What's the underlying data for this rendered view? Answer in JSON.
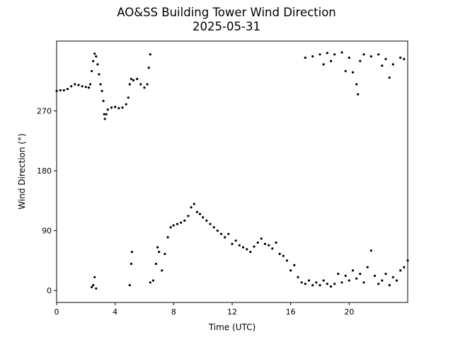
{
  "chart_data": {
    "type": "scatter",
    "title": "AO&SS Building Tower Wind Direction",
    "subtitle": "2025-05-31",
    "xlabel": "Time (UTC)",
    "ylabel": "Wind Direction (°)",
    "xlim": [
      0,
      24
    ],
    "ylim": [
      -18,
      375
    ],
    "x_ticks": [
      0,
      4,
      8,
      12,
      16,
      20
    ],
    "x_tick_labels": [
      "0",
      "4",
      "8",
      "12",
      "16",
      "20"
    ],
    "y_ticks": [
      0,
      90,
      180,
      270
    ],
    "y_tick_labels": [
      "0",
      "90",
      "180",
      "270"
    ],
    "grid": false,
    "marker_color": "#000000",
    "series": [
      {
        "points": [
          [
            0.0,
            300
          ],
          [
            0.25,
            301
          ],
          [
            0.5,
            301
          ],
          [
            0.75,
            303
          ],
          [
            1.0,
            307
          ],
          [
            1.25,
            310
          ],
          [
            1.5,
            309
          ],
          [
            1.75,
            307
          ],
          [
            2.0,
            306
          ],
          [
            2.2,
            305
          ],
          [
            2.3,
            310
          ],
          [
            2.4,
            330
          ],
          [
            2.5,
            345
          ],
          [
            2.6,
            356
          ],
          [
            2.7,
            352
          ],
          [
            2.8,
            340
          ],
          [
            2.9,
            325
          ],
          [
            3.0,
            310
          ],
          [
            3.1,
            300
          ],
          [
            3.2,
            285
          ],
          [
            3.25,
            265
          ],
          [
            3.3,
            258
          ],
          [
            3.4,
            265
          ],
          [
            3.5,
            272
          ],
          [
            3.75,
            275
          ],
          [
            4.0,
            276
          ],
          [
            4.25,
            274
          ],
          [
            4.5,
            275
          ],
          [
            4.75,
            280
          ],
          [
            4.9,
            290
          ],
          [
            5.0,
            310
          ],
          [
            5.1,
            318
          ],
          [
            5.25,
            316
          ],
          [
            5.5,
            318
          ],
          [
            5.75,
            310
          ],
          [
            6.0,
            305
          ],
          [
            6.2,
            310
          ],
          [
            6.3,
            335
          ],
          [
            6.4,
            355
          ],
          [
            2.4,
            5
          ],
          [
            2.5,
            8
          ],
          [
            2.6,
            20
          ],
          [
            2.7,
            3
          ],
          [
            5.0,
            8
          ],
          [
            5.1,
            40
          ],
          [
            5.15,
            58
          ],
          [
            6.4,
            12
          ],
          [
            6.6,
            15
          ],
          [
            6.8,
            40
          ],
          [
            6.9,
            65
          ],
          [
            7.0,
            58
          ],
          [
            7.2,
            30
          ],
          [
            7.4,
            55
          ],
          [
            7.6,
            80
          ],
          [
            7.8,
            95
          ],
          [
            8.0,
            98
          ],
          [
            8.25,
            100
          ],
          [
            8.5,
            102
          ],
          [
            8.75,
            105
          ],
          [
            9.0,
            112
          ],
          [
            9.2,
            125
          ],
          [
            9.4,
            130
          ],
          [
            9.6,
            118
          ],
          [
            9.8,
            115
          ],
          [
            10.0,
            110
          ],
          [
            10.25,
            105
          ],
          [
            10.5,
            100
          ],
          [
            10.75,
            95
          ],
          [
            11.0,
            90
          ],
          [
            11.25,
            85
          ],
          [
            11.5,
            80
          ],
          [
            11.75,
            85
          ],
          [
            12.0,
            70
          ],
          [
            12.25,
            75
          ],
          [
            12.5,
            68
          ],
          [
            12.75,
            65
          ],
          [
            13.0,
            62
          ],
          [
            13.25,
            58
          ],
          [
            13.5,
            66
          ],
          [
            13.75,
            72
          ],
          [
            14.0,
            78
          ],
          [
            14.25,
            70
          ],
          [
            14.5,
            68
          ],
          [
            14.75,
            63
          ],
          [
            15.0,
            72
          ],
          [
            15.25,
            55
          ],
          [
            15.5,
            52
          ],
          [
            15.75,
            45
          ],
          [
            16.0,
            30
          ],
          [
            16.25,
            38
          ],
          [
            16.5,
            20
          ],
          [
            16.75,
            12
          ],
          [
            17.0,
            10
          ],
          [
            17.25,
            15
          ],
          [
            17.5,
            8
          ],
          [
            17.75,
            12
          ],
          [
            18.0,
            8
          ],
          [
            18.25,
            15
          ],
          [
            18.5,
            10
          ],
          [
            18.75,
            6
          ],
          [
            19.0,
            10
          ],
          [
            19.25,
            25
          ],
          [
            19.5,
            12
          ],
          [
            19.75,
            22
          ],
          [
            20.0,
            15
          ],
          [
            20.25,
            30
          ],
          [
            20.5,
            18
          ],
          [
            20.75,
            25
          ],
          [
            21.0,
            12
          ],
          [
            21.25,
            35
          ],
          [
            21.5,
            60
          ],
          [
            21.75,
            22
          ],
          [
            22.0,
            10
          ],
          [
            22.25,
            15
          ],
          [
            22.5,
            25
          ],
          [
            22.75,
            8
          ],
          [
            23.0,
            20
          ],
          [
            23.25,
            15
          ],
          [
            23.5,
            30
          ],
          [
            23.75,
            35
          ],
          [
            24.0,
            45
          ],
          [
            17.0,
            350
          ],
          [
            17.5,
            352
          ],
          [
            18.0,
            355
          ],
          [
            18.25,
            340
          ],
          [
            18.5,
            357
          ],
          [
            18.75,
            345
          ],
          [
            19.0,
            355
          ],
          [
            19.5,
            358
          ],
          [
            19.75,
            330
          ],
          [
            20.0,
            350
          ],
          [
            20.25,
            328
          ],
          [
            20.5,
            310
          ],
          [
            20.6,
            295
          ],
          [
            20.75,
            345
          ],
          [
            21.0,
            355
          ],
          [
            21.5,
            352
          ],
          [
            22.0,
            355
          ],
          [
            22.25,
            338
          ],
          [
            22.5,
            348
          ],
          [
            22.75,
            320
          ],
          [
            23.0,
            340
          ],
          [
            23.5,
            350
          ],
          [
            23.75,
            348
          ]
        ]
      }
    ]
  }
}
